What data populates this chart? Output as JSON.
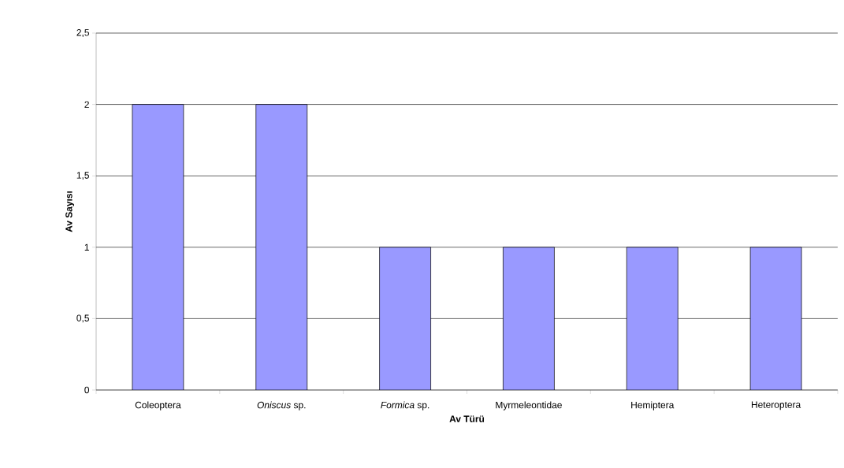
{
  "chart_data": {
    "type": "bar",
    "xlabel": "Av Türü",
    "ylabel": "Av Sayısı",
    "categories": [
      "Coleoptera",
      "*Oniscus* sp.",
      "*Formica* sp.",
      "Myrmeleontidae",
      "Hemiptera",
      "Heteroptera"
    ],
    "values": [
      2,
      2,
      1,
      1,
      1,
      1
    ],
    "color": "#9999ff",
    "ylim": [
      0,
      2.5
    ],
    "yticks": [
      0,
      {
        "value": 0.5,
        "label": "0,5"
      },
      1,
      {
        "value": 1.5,
        "label": "1,5"
      },
      2,
      {
        "value": 2.5,
        "label": "2,5"
      }
    ],
    "grid": "y"
  }
}
